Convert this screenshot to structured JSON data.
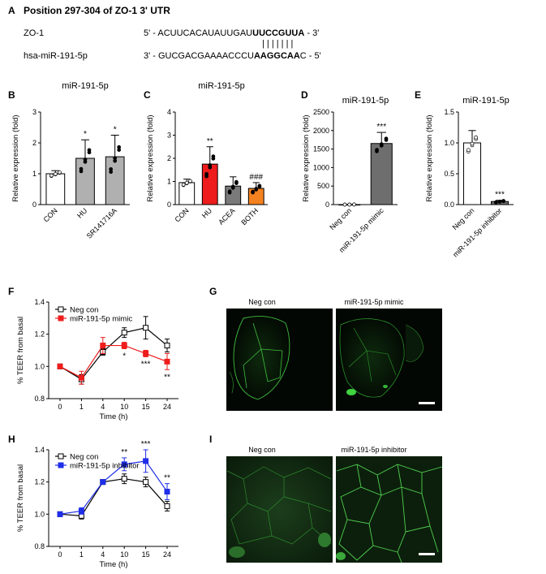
{
  "panel_labels": {
    "A": "A",
    "B": "B",
    "C": "C",
    "D": "D",
    "E": "E",
    "F": "F",
    "G": "G",
    "H": "H",
    "I": "I"
  },
  "panel_a": {
    "title": "Position 297-304 of ZO-1 3' UTR",
    "row1_label": "ZO-1",
    "row1_prefix": "5' - ACUUCACAUAUUGAU",
    "row1_bold": "UUCCGUUA",
    "row1_suffix": " - 3'",
    "row2_label": "hsa-miR-191-5p",
    "row2_prefix": "3' - GUCGACGAAAACCCU",
    "row2_bold": "AAGGCAA",
    "row2_suffix": "C - 5'",
    "pair_marks": "| | | | | | |"
  },
  "chart_data": [
    {
      "id": "B",
      "type": "bar",
      "title": "miR-191-5p",
      "ylabel": "Relative expression (fold)",
      "categories": [
        "CON",
        "HU",
        "SR141716A"
      ],
      "values": [
        1.0,
        1.5,
        1.55
      ],
      "errors": [
        0.1,
        0.6,
        0.7
      ],
      "significance": [
        "",
        "*",
        "*"
      ],
      "ylim": [
        0,
        3
      ],
      "yticks": [
        "0",
        "1",
        "2",
        "3"
      ],
      "colors": [
        "#ffffff",
        "#b0b0b0",
        "#b0b0b0"
      ]
    },
    {
      "id": "C",
      "type": "bar",
      "title": "miR-191-5p",
      "ylabel": "Relative expression (fold)",
      "categories": [
        "CON",
        "HU",
        "ACEA",
        "BOTH"
      ],
      "values": [
        0.95,
        1.75,
        0.8,
        0.7
      ],
      "errors": [
        0.15,
        0.75,
        0.4,
        0.25
      ],
      "significance": [
        "",
        "**",
        "",
        "###"
      ],
      "ylim": [
        0,
        4
      ],
      "yticks": [
        "0",
        "1",
        "2",
        "3",
        "4"
      ],
      "colors": [
        "#ffffff",
        "#ee1c1c",
        "#7a7a7a",
        "#f58220"
      ]
    },
    {
      "id": "D",
      "type": "bar",
      "title": "miR-191-5p",
      "ylabel": "Relative expression (fold)",
      "categories": [
        "Neg con",
        "miR-191-5p mimic"
      ],
      "values": [
        1,
        1650
      ],
      "errors": [
        3,
        300
      ],
      "significance": [
        "",
        "***"
      ],
      "ylim": [
        0,
        2500
      ],
      "yticks": [
        "0",
        "500",
        "1000",
        "1500",
        "2000",
        "2500"
      ],
      "colors": [
        "#ffffff",
        "#6e6e6e"
      ]
    },
    {
      "id": "E",
      "type": "bar",
      "title": "miR-191-5p",
      "ylabel": "Relative expression (fold)",
      "categories": [
        "Neg con",
        "miR-191-5p inhibitor"
      ],
      "values": [
        1.0,
        0.05
      ],
      "errors": [
        0.2,
        0.02
      ],
      "significance": [
        "",
        "***"
      ],
      "ylim": [
        0,
        1.5
      ],
      "yticks": [
        "0.0",
        "0.5",
        "1.0",
        "1.5"
      ],
      "colors": [
        "#ffffff",
        "#6e6e6e"
      ]
    },
    {
      "id": "F",
      "type": "line",
      "xlabel": "Time (h)",
      "ylabel": "% TEER from basal",
      "x": [
        "0",
        "1",
        "4",
        "10",
        "15",
        "24"
      ],
      "ylim": [
        0.8,
        1.4
      ],
      "yticks": [
        "0.8",
        "1.0",
        "1.2",
        "1.4"
      ],
      "series": [
        {
          "name": "Neg con",
          "values": [
            1.0,
            0.92,
            1.09,
            1.21,
            1.24,
            1.13
          ],
          "errors": [
            0.01,
            0.03,
            0.02,
            0.03,
            0.07,
            0.04
          ],
          "color": "#000000",
          "marker": "open-square"
        },
        {
          "name": "miR-191-5p mimic",
          "values": [
            1.0,
            0.93,
            1.13,
            1.13,
            1.08,
            1.03
          ],
          "errors": [
            0.01,
            0.04,
            0.05,
            0.02,
            0.02,
            0.05
          ],
          "color": "#ee1c1c",
          "marker": "filled-square"
        }
      ],
      "annotations": [
        {
          "x": "10",
          "text": "*"
        },
        {
          "x": "15",
          "text": "***"
        },
        {
          "x": "24",
          "text": "**"
        }
      ]
    },
    {
      "id": "H",
      "type": "line",
      "xlabel": "Time (h)",
      "ylabel": "% TEER from basal",
      "x": [
        "0",
        "1",
        "4",
        "10",
        "15",
        "24"
      ],
      "ylim": [
        0.8,
        1.4
      ],
      "yticks": [
        "0.8",
        "1.0",
        "1.2",
        "1.4"
      ],
      "series": [
        {
          "name": "Neg con",
          "values": [
            1.0,
            0.99,
            1.2,
            1.22,
            1.2,
            1.05
          ],
          "errors": [
            0.01,
            0.02,
            0.01,
            0.03,
            0.03,
            0.03
          ],
          "color": "#000000",
          "marker": "open-square"
        },
        {
          "name": "miR-191-5p inhibitor",
          "values": [
            1.0,
            1.02,
            1.2,
            1.31,
            1.33,
            1.14
          ],
          "errors": [
            0.01,
            0.02,
            0.01,
            0.04,
            0.07,
            0.05
          ],
          "color": "#1f2ee8",
          "marker": "filled-square"
        }
      ],
      "annotations": [
        {
          "x": "10",
          "text": "**"
        },
        {
          "x": "15",
          "text": "***"
        },
        {
          "x": "24",
          "text": "**"
        }
      ]
    }
  ],
  "panel_g": {
    "left_label": "Neg con",
    "right_label": "miR-191-5p mimic"
  },
  "panel_i": {
    "left_label": "Neg con",
    "right_label": "miR-191-5p inhibitor"
  }
}
